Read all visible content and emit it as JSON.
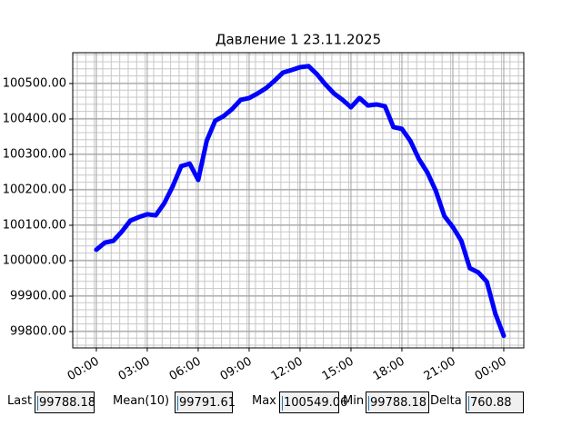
{
  "chart_data": {
    "type": "line",
    "title": "Давление 1 23.11.2025",
    "x": [
      0,
      0.5,
      1,
      1.5,
      2,
      2.5,
      3,
      3.5,
      4,
      4.5,
      5,
      5.5,
      6,
      6.5,
      7,
      7.5,
      8,
      8.5,
      9,
      9.5,
      10,
      10.5,
      11,
      11.5,
      12,
      12.5,
      13,
      13.5,
      14,
      14.5,
      15,
      15.5,
      16,
      16.5,
      17,
      17.5,
      18,
      18.5,
      19,
      19.5,
      20,
      20.5,
      21,
      21.5,
      22,
      22.5,
      23,
      23.5,
      24
    ],
    "series": [
      {
        "color": "#0000ff",
        "values": [
          100031,
          100051,
          100056,
          100082,
          100113,
          100123,
          100131,
          100128,
          100162,
          100210,
          100267,
          100274,
          100228,
          100338,
          100395,
          100408,
          100428,
          100454,
          100459,
          100472,
          100487,
          100508,
          100531,
          100538,
          100546,
          100549.06,
          100526,
          100497,
          100472,
          100454,
          100433,
          100459,
          100438,
          100441,
          100436,
          100377,
          100372,
          100338,
          100287,
          100249,
          100197,
          100126,
          100095,
          100056,
          99979,
          99967,
          99941,
          99851,
          99788.18
        ]
      }
    ],
    "xlim": [
      -1.39,
      25.18
    ],
    "xticks": [
      {
        "value": 0,
        "label": "00:00"
      },
      {
        "value": 3,
        "label": "03:00"
      },
      {
        "value": 6,
        "label": "06:00"
      },
      {
        "value": 9,
        "label": "09:00"
      },
      {
        "value": 12,
        "label": "12:00"
      },
      {
        "value": 15,
        "label": "15:00"
      },
      {
        "value": 18,
        "label": "18:00"
      },
      {
        "value": 21,
        "label": "21:00"
      },
      {
        "value": 24,
        "label": "00:00"
      }
    ],
    "ylim": [
      99754,
      100587
    ],
    "yticks": [
      {
        "value": 99800,
        "label": "99800.00"
      },
      {
        "value": 99900,
        "label": "99900.00"
      },
      {
        "value": 100000,
        "label": "100000.00"
      },
      {
        "value": 100100,
        "label": "100100.00"
      },
      {
        "value": 100200,
        "label": "100200.00"
      },
      {
        "value": 100300,
        "label": "100300.00"
      },
      {
        "value": 100400,
        "label": "100400.00"
      },
      {
        "value": 100500,
        "label": "100500.00"
      }
    ],
    "grid": true,
    "minor_grid": true
  },
  "widgets": [
    {
      "label": "Last",
      "value": "99788.18"
    },
    {
      "label": "Mean(10)",
      "value": "99791.61"
    },
    {
      "label": "Max",
      "value": "100549.06"
    },
    {
      "label": "Min",
      "value": "99788.18"
    },
    {
      "label": "Delta",
      "value": "760.88"
    }
  ]
}
